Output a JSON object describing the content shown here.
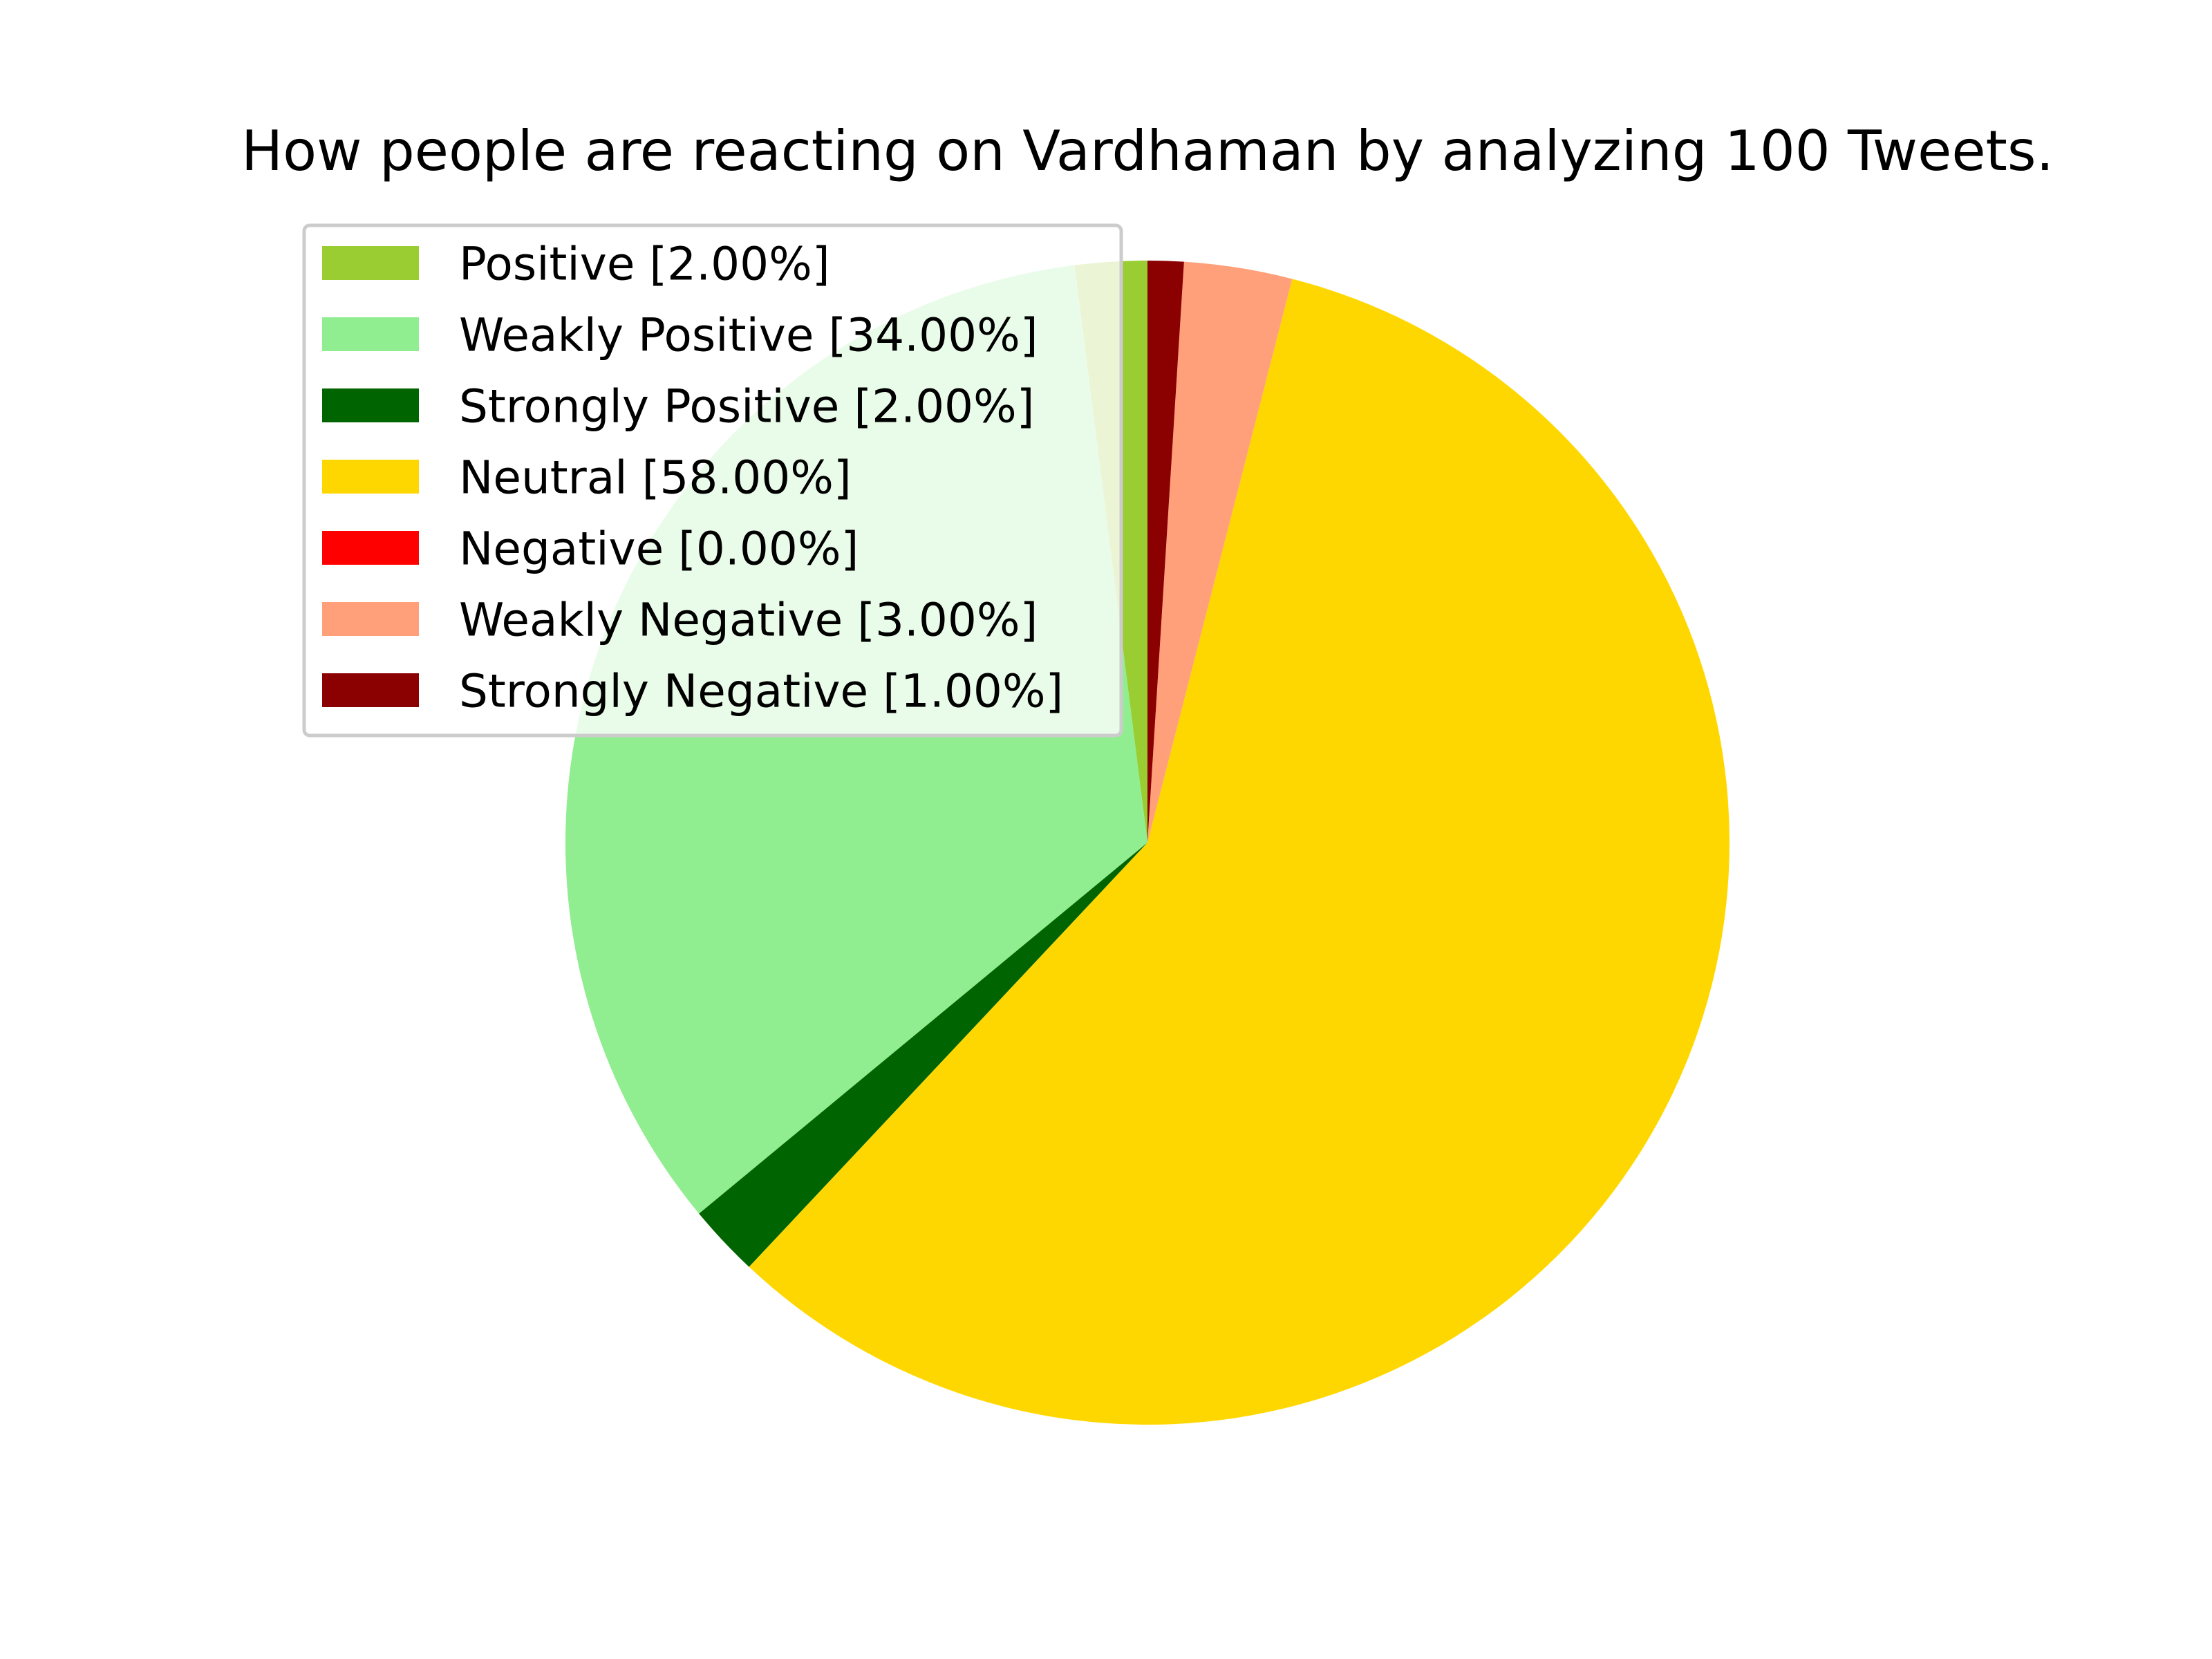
{
  "chart_data": {
    "type": "pie",
    "title": "How people are reacting on Vardhaman by analyzing 100 Tweets.",
    "legend_position": "upper-left",
    "start_angle_deg": 90,
    "direction": "counterclockwise",
    "slices": [
      {
        "label": "Positive [2.00%]",
        "value": 2,
        "color": "#9acd32"
      },
      {
        "label": "Weakly Positive [34.00%]",
        "value": 34,
        "color": "#90ee90"
      },
      {
        "label": "Strongly Positive [2.00%]",
        "value": 2,
        "color": "#006400"
      },
      {
        "label": "Neutral [58.00%]",
        "value": 58,
        "color": "#ffd700"
      },
      {
        "label": "Negative [0.00%]",
        "value": 0,
        "color": "#ff0000"
      },
      {
        "label": "Weakly Negative [3.00%]",
        "value": 3,
        "color": "#ffa07a"
      },
      {
        "label": "Strongly Negative [1.00%]",
        "value": 1,
        "color": "#8b0000"
      }
    ]
  }
}
